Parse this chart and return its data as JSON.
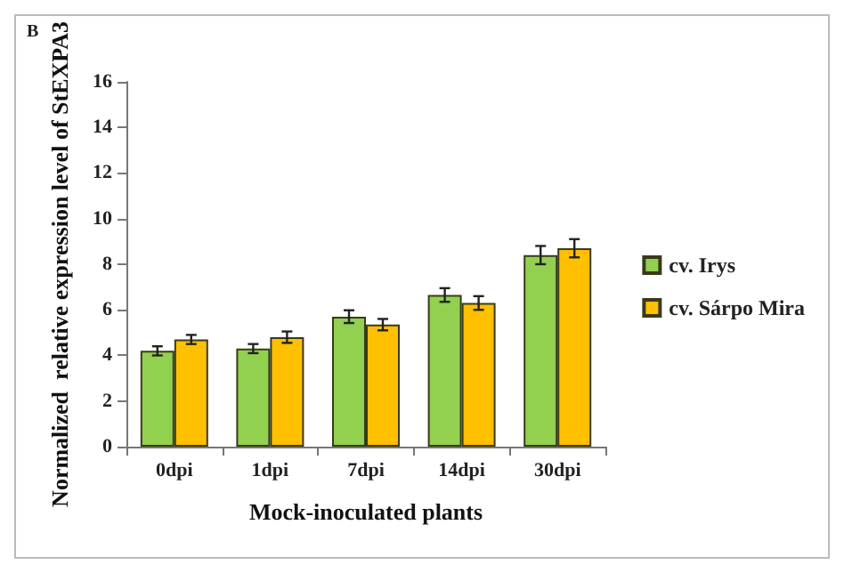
{
  "chart_data": {
    "type": "bar",
    "xlabel": "Mock-inoculated plants",
    "ylabel": "Normalized  relative expression level of StEXPA3",
    "annotations": [
      "B"
    ],
    "categories": [
      "0dpi",
      "1dpi",
      "7dpi",
      "14dpi",
      "30dpi"
    ],
    "series": [
      {
        "name": "cv. Irys",
        "color": "#92d050",
        "values": [
          4.2,
          4.3,
          5.7,
          6.65,
          8.4
        ],
        "errors": [
          0.2,
          0.2,
          0.28,
          0.3,
          0.4
        ]
      },
      {
        "name": "cv. Sárpo Mira",
        "color": "#ffc000",
        "values": [
          4.7,
          4.8,
          5.35,
          6.3,
          8.7
        ],
        "errors": [
          0.2,
          0.25,
          0.25,
          0.3,
          0.4
        ]
      }
    ],
    "ylim": [
      0,
      16
    ],
    "yticks": [
      0,
      2,
      4,
      6,
      8,
      10,
      12,
      14,
      16
    ],
    "grid": false,
    "legend": "right"
  }
}
